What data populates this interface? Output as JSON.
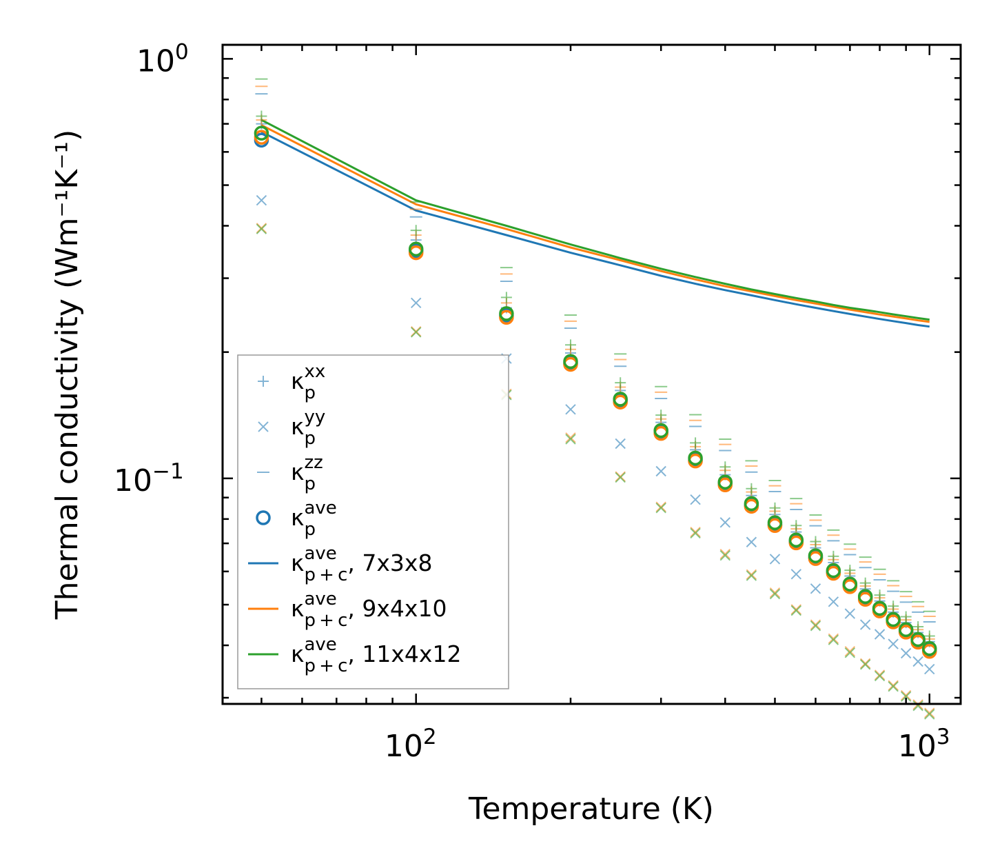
{
  "chart_data": {
    "type": "scatter",
    "title": "",
    "xlabel": "Temperature (K)",
    "ylabel": "Thermal conductivity (Wm⁻¹K⁻¹)",
    "xscale": "log",
    "yscale": "log",
    "xlim": [
      42,
      1150
    ],
    "ylim": [
      0.029,
      1.08
    ],
    "x_ticks": [
      {
        "value": 100,
        "base": "10",
        "exp": "2"
      },
      {
        "value": 1000,
        "base": "10",
        "exp": "3"
      }
    ],
    "y_ticks": [
      {
        "value": 0.1,
        "base": "10",
        "exp": "−1"
      },
      {
        "value": 1.0,
        "base": "10",
        "exp": "0"
      }
    ],
    "x": [
      50,
      100,
      150,
      200,
      250,
      300,
      350,
      400,
      450,
      500,
      550,
      600,
      650,
      700,
      750,
      800,
      850,
      900,
      950,
      1000
    ],
    "colors": {
      "blue": "#1f77b4",
      "orange": "#ff7f0e",
      "green": "#2ca02c"
    },
    "series": [
      {
        "name": "κ_p^xx (7x3x8)",
        "marker": "plus",
        "color": "#1f77b4",
        "values": [
          0.7,
          0.37,
          0.255,
          0.199,
          0.162,
          0.136,
          0.117,
          0.102,
          0.091,
          0.082,
          0.0745,
          0.0683,
          0.063,
          0.0585,
          0.0545,
          0.051,
          0.048,
          0.0453,
          0.0429,
          0.0408
        ]
      },
      {
        "name": "κ_p^xx (9x4x10)",
        "marker": "plus",
        "color": "#ff7f0e",
        "values": [
          0.715,
          0.38,
          0.262,
          0.203,
          0.165,
          0.1385,
          0.119,
          0.1045,
          0.0928,
          0.0835,
          0.0758,
          0.0695,
          0.064,
          0.0594,
          0.0554,
          0.0519,
          0.0488,
          0.046,
          0.0436,
          0.0414
        ]
      },
      {
        "name": "κ_p^xx (11x4x12)",
        "marker": "plus",
        "color": "#2ca02c",
        "values": [
          0.73,
          0.39,
          0.27,
          0.208,
          0.169,
          0.1415,
          0.1215,
          0.1065,
          0.0945,
          0.085,
          0.0772,
          0.0707,
          0.0652,
          0.0604,
          0.0563,
          0.0527,
          0.0496,
          0.0468,
          0.0443,
          0.0421
        ]
      },
      {
        "name": "κ_p^yy (7x3x8)",
        "marker": "x",
        "color": "#1f77b4",
        "values": [
          0.46,
          0.262,
          0.193,
          0.146,
          0.121,
          0.104,
          0.089,
          0.0785,
          0.0705,
          0.0642,
          0.0591,
          0.0546,
          0.0508,
          0.0476,
          0.0448,
          0.0425,
          0.0403,
          0.0383,
          0.0366,
          0.0351
        ]
      },
      {
        "name": "κ_p^yy (9x4x10)",
        "marker": "x",
        "color": "#ff7f0e",
        "values": [
          0.395,
          0.224,
          0.159,
          0.125,
          0.101,
          0.0855,
          0.0745,
          0.066,
          0.059,
          0.0534,
          0.0487,
          0.0448,
          0.0415,
          0.0387,
          0.0362,
          0.034,
          0.0321,
          0.0304,
          0.0289,
          0.0276
        ]
      },
      {
        "name": "κ_p^yy (11x4x12)",
        "marker": "x",
        "color": "#2ca02c",
        "values": [
          0.393,
          0.223,
          0.158,
          0.124,
          0.1005,
          0.085,
          0.074,
          0.0655,
          0.0586,
          0.053,
          0.0484,
          0.0445,
          0.0412,
          0.0384,
          0.036,
          0.0338,
          0.0319,
          0.0302,
          0.0287,
          0.0274
        ]
      },
      {
        "name": "κ_p^zz (7x3x8)",
        "marker": "minus",
        "color": "#1f77b4",
        "values": [
          0.825,
          0.42,
          0.295,
          0.228,
          0.185,
          0.155,
          0.133,
          0.1165,
          0.1035,
          0.093,
          0.0843,
          0.0771,
          0.071,
          0.0658,
          0.0613,
          0.0573,
          0.0538,
          0.0507,
          0.048,
          0.0455
        ]
      },
      {
        "name": "κ_p^zz (9x4x10)",
        "marker": "minus",
        "color": "#ff7f0e",
        "values": [
          0.86,
          0.438,
          0.307,
          0.237,
          0.192,
          0.1605,
          0.1375,
          0.1205,
          0.107,
          0.096,
          0.087,
          0.0795,
          0.0732,
          0.0678,
          0.0632,
          0.0591,
          0.0555,
          0.0523,
          0.0495,
          0.0469
        ]
      },
      {
        "name": "κ_p^zz (11x4x12)",
        "marker": "minus",
        "color": "#2ca02c",
        "values": [
          0.895,
          0.456,
          0.318,
          0.245,
          0.198,
          0.1655,
          0.1418,
          0.124,
          0.1101,
          0.0988,
          0.0895,
          0.0818,
          0.0753,
          0.0697,
          0.0649,
          0.0607,
          0.057,
          0.0537,
          0.0508,
          0.0482
        ]
      },
      {
        "name": "κ_p^ave (7x3x8)",
        "marker": "circle",
        "color": "#1f77b4",
        "values": [
          0.64,
          0.348,
          0.244,
          0.188,
          0.153,
          0.1285,
          0.1105,
          0.097,
          0.0862,
          0.0776,
          0.0706,
          0.0647,
          0.0597,
          0.0555,
          0.0518,
          0.0486,
          0.0457,
          0.0432,
          0.0409,
          0.0389
        ]
      },
      {
        "name": "κ_p^ave (9x4x10)",
        "marker": "circle",
        "color": "#ff7f0e",
        "values": [
          0.65,
          0.345,
          0.242,
          0.187,
          0.152,
          0.128,
          0.11,
          0.0965,
          0.0858,
          0.0772,
          0.0702,
          0.0644,
          0.0594,
          0.0552,
          0.0515,
          0.0483,
          0.0455,
          0.043,
          0.0407,
          0.0387
        ]
      },
      {
        "name": "κ_p^ave (11x4x12)",
        "marker": "circle",
        "color": "#2ca02c",
        "values": [
          0.665,
          0.352,
          0.247,
          0.19,
          0.1545,
          0.13,
          0.1118,
          0.098,
          0.0871,
          0.0784,
          0.0713,
          0.0654,
          0.0603,
          0.056,
          0.0523,
          0.049,
          0.0461,
          0.0436,
          0.0413,
          0.0393
        ]
      },
      {
        "name": "κ_p+c^ave, 7x3x8",
        "marker": "line",
        "color": "#1f77b4",
        "values": [
          0.67,
          0.435,
          0.38,
          0.345,
          0.322,
          0.304,
          0.291,
          0.281,
          0.273,
          0.266,
          0.26,
          0.255,
          0.2505,
          0.2465,
          0.243,
          0.2398,
          0.237,
          0.2345,
          0.232,
          0.23
        ]
      },
      {
        "name": "κ_p+c^ave, 9x4x10",
        "marker": "line",
        "color": "#ff7f0e",
        "values": [
          0.695,
          0.45,
          0.393,
          0.355,
          0.331,
          0.312,
          0.298,
          0.287,
          0.279,
          0.272,
          0.266,
          0.261,
          0.2565,
          0.2525,
          0.249,
          0.2458,
          0.243,
          0.2405,
          0.238,
          0.236
        ]
      },
      {
        "name": "κ_p+c^ave, 11x4x12",
        "marker": "line",
        "color": "#2ca02c",
        "values": [
          0.715,
          0.46,
          0.4,
          0.361,
          0.335,
          0.316,
          0.302,
          0.291,
          0.282,
          0.275,
          0.269,
          0.264,
          0.259,
          0.255,
          0.252,
          0.249,
          0.246,
          0.2435,
          0.241,
          0.239
        ]
      }
    ],
    "legend": {
      "location": "lower-left",
      "entries": [
        {
          "marker": "plus",
          "color": "#1f77b4",
          "base": "κ",
          "sub": "p",
          "sup": "xx",
          "suffix": ""
        },
        {
          "marker": "x",
          "color": "#1f77b4",
          "base": "κ",
          "sub": "p",
          "sup": "yy",
          "suffix": ""
        },
        {
          "marker": "minus",
          "color": "#1f77b4",
          "base": "κ",
          "sub": "p",
          "sup": "zz",
          "suffix": ""
        },
        {
          "marker": "circle",
          "color": "#1f77b4",
          "base": "κ",
          "sub": "p",
          "sup": "ave",
          "suffix": ""
        },
        {
          "marker": "line",
          "color": "#1f77b4",
          "base": "κ",
          "sub": "p + c",
          "sup": "ave",
          "suffix": ", 7x3x8"
        },
        {
          "marker": "line",
          "color": "#ff7f0e",
          "base": "κ",
          "sub": "p + c",
          "sup": "ave",
          "suffix": ", 9x4x10"
        },
        {
          "marker": "line",
          "color": "#2ca02c",
          "base": "κ",
          "sub": "p + c",
          "sup": "ave",
          "suffix": ", 11x4x12"
        }
      ]
    }
  }
}
